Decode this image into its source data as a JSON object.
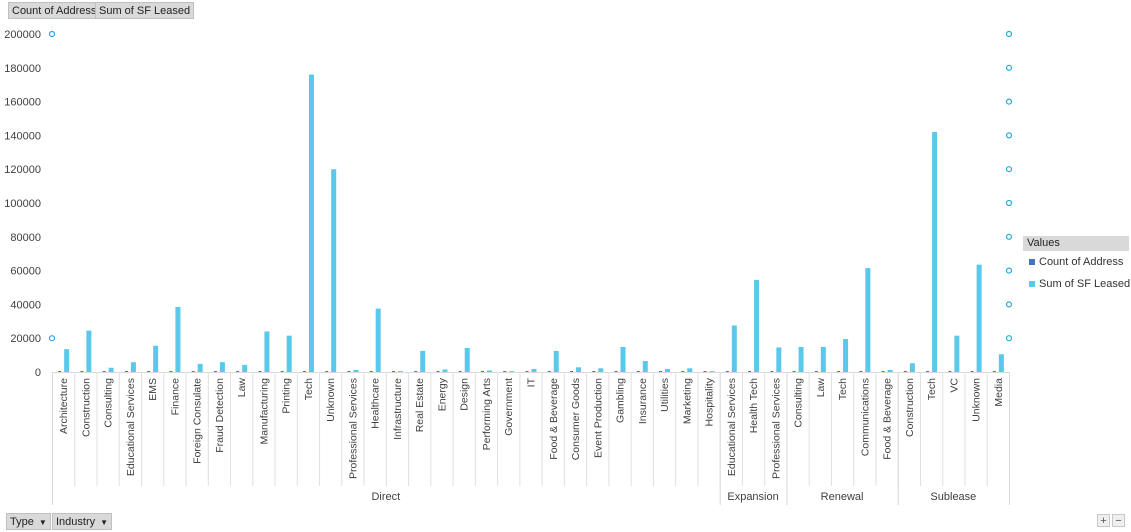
{
  "field_buttons": {
    "count_of_address": "Count of Address",
    "sum_of_sf_leased": "Sum of SF Leased"
  },
  "filter_buttons": {
    "type": "Type",
    "industry": "Industry"
  },
  "legend": {
    "title": "Values",
    "items": [
      {
        "label": "Count of Address",
        "color": "#4472c4"
      },
      {
        "label": "Sum of SF Leased",
        "color": "#5ac8eb"
      }
    ]
  },
  "zoom": {
    "plus": "+",
    "minus": "−"
  },
  "chart_data": {
    "type": "bar",
    "ylim": [
      0,
      200000
    ],
    "yticks": [
      "0",
      "20000",
      "40000",
      "60000",
      "80000",
      "100000",
      "120000",
      "140000",
      "160000",
      "180000",
      "200000"
    ],
    "groups": [
      {
        "label": "Direct",
        "categories": [
          "Architecture",
          "Construction",
          "Consulting",
          "Educational Services",
          "EMS",
          "Finance",
          "Foreign Consulate",
          "Fraud Detection",
          "Law",
          "Manufacturing",
          "Printing",
          "Tech",
          "Unknown",
          "Professional Services",
          "Healthcare",
          "Infrastructure",
          "Real Estate",
          "Energy",
          "Design",
          "Performing Arts",
          "Government",
          "IT",
          "Food & Beverage",
          "Consumer Goods",
          "Event Production",
          "Gambling",
          "Insurance",
          "Utilities",
          "Marketing",
          "Hospitality"
        ],
        "count_of_address": [
          1,
          2,
          1,
          1,
          1,
          2,
          1,
          1,
          1,
          2,
          1,
          6,
          5,
          1,
          2,
          1,
          1,
          1,
          1,
          1,
          1,
          1,
          1,
          1,
          1,
          1,
          1,
          1,
          1,
          1
        ],
        "sum_of_sf_leased": [
          13500,
          24500,
          2500,
          5800,
          15500,
          38500,
          4800,
          5800,
          4200,
          24000,
          21500,
          176000,
          120000,
          1200,
          37500,
          500,
          12500,
          1500,
          14200,
          900,
          500,
          1800,
          12500,
          2800,
          2200,
          14800,
          6500,
          1800,
          2200,
          500
        ]
      },
      {
        "label": "Expansion",
        "categories": [
          "Educational Services",
          "Health Tech",
          "Professional Services"
        ],
        "count_of_address": [
          1,
          2,
          1
        ],
        "sum_of_sf_leased": [
          27500,
          54500,
          14500
        ]
      },
      {
        "label": "Renewal",
        "categories": [
          "Consulting",
          "Law",
          "Tech",
          "Communications",
          "Food & Beverage"
        ],
        "count_of_address": [
          1,
          1,
          1,
          2,
          1
        ],
        "sum_of_sf_leased": [
          14800,
          14800,
          19500,
          61500,
          1200
        ]
      },
      {
        "label": "Sublease",
        "categories": [
          "Construction",
          "Tech",
          "VC",
          "Unknown",
          "Media"
        ],
        "count_of_address": [
          1,
          5,
          1,
          3,
          1
        ],
        "sum_of_sf_leased": [
          5200,
          142000,
          21500,
          63500,
          10500
        ]
      }
    ],
    "secondary_axis_markers": [
      20000,
      40000,
      60000,
      80000,
      100000,
      120000,
      140000,
      160000,
      180000,
      200000
    ]
  }
}
